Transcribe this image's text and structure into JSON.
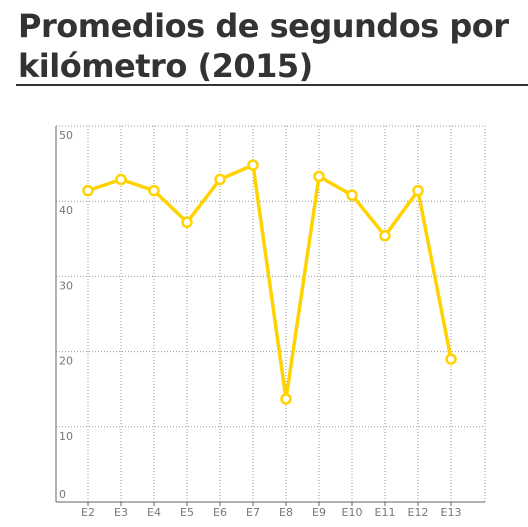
{
  "title": "Promedios de segundos por kilómetro (2015)",
  "chart_data": {
    "type": "line",
    "title": "Promedios de segundos por kilómetro (2015)",
    "xlabel": "",
    "ylabel": "",
    "categories": [
      "E2",
      "E3",
      "E4",
      "E5",
      "E6",
      "E7",
      "E8",
      "E9",
      "E10",
      "E11",
      "E12",
      "E13"
    ],
    "series": [
      {
        "values": [
          41.4,
          42.9,
          41.4,
          37.2,
          42.9,
          44.8,
          13.7,
          43.3,
          40.8,
          35.4,
          41.4,
          19.0
        ]
      }
    ],
    "ylim": [
      0,
      50
    ],
    "yticks": [
      0,
      10,
      20,
      30,
      40,
      50
    ],
    "grid": true,
    "colors": {
      "line": "#FFD200",
      "marker_fill": "#FFFFFF",
      "grid": "#999999",
      "axis": "#666666",
      "text": "#333333"
    }
  }
}
